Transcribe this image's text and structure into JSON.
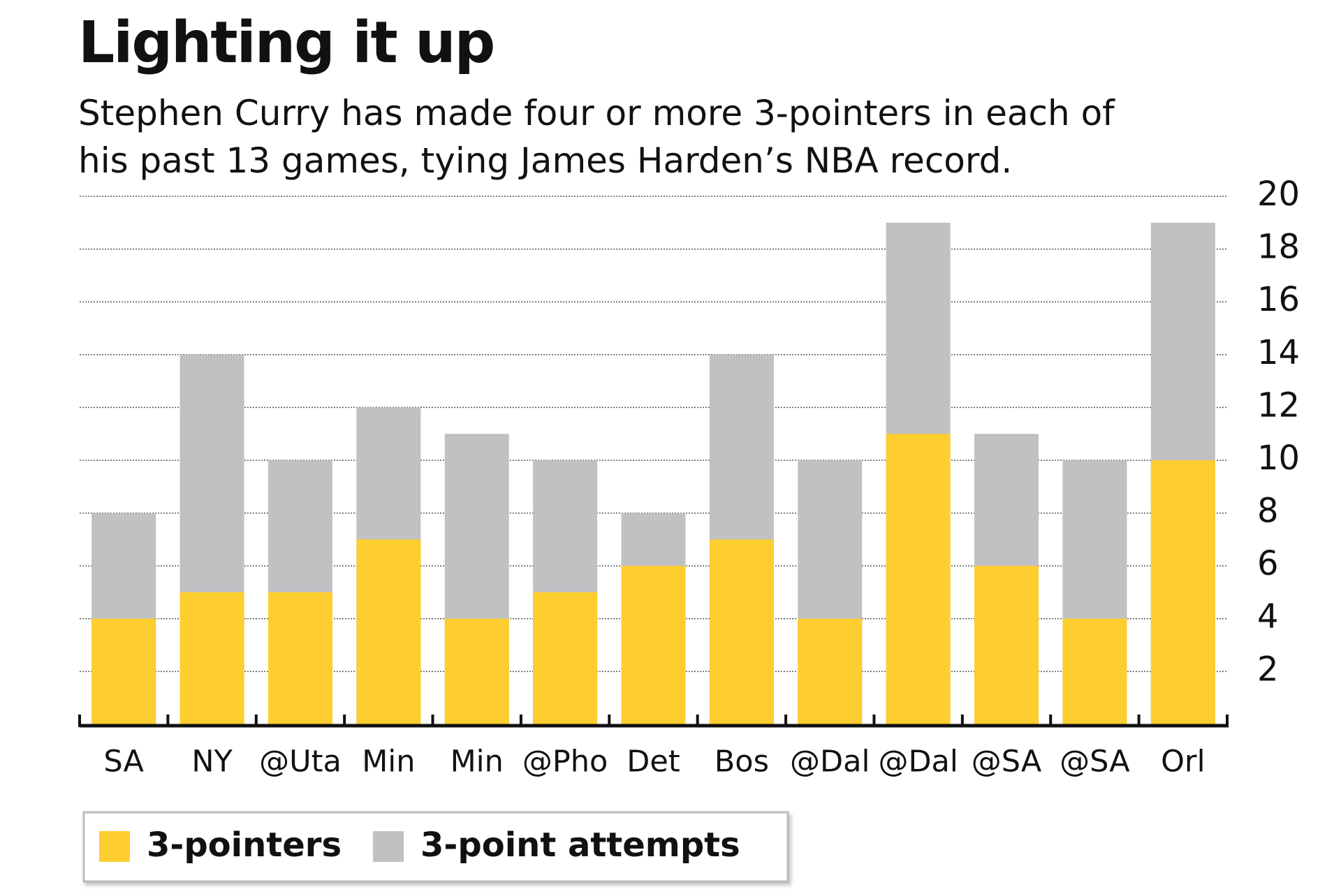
{
  "chart_data": {
    "type": "bar",
    "title": "Lighting it up",
    "subtitle": "Stephen Curry has made four or more 3-pointers in each of his past 13 games, tying James Harden’s NBA record.",
    "categories": [
      "SA",
      "NY",
      "@Uta",
      "Min",
      "Min",
      "@Pho",
      "Det",
      "Bos",
      "@Dal",
      "@Dal",
      "@SA",
      "@SA",
      "Orl"
    ],
    "series": [
      {
        "name": "3-pointers",
        "color": "#fecd2f",
        "values": [
          4,
          5,
          5,
          7,
          4,
          5,
          6,
          7,
          4,
          11,
          6,
          4,
          10
        ]
      },
      {
        "name": "3-point attempts",
        "color": "#c0c1c3",
        "values": [
          8,
          14,
          10,
          12,
          11,
          10,
          8,
          14,
          10,
          19,
          11,
          10,
          19
        ]
      }
    ],
    "ylim": [
      0,
      20
    ],
    "yticks": [
      2,
      4,
      6,
      8,
      10,
      12,
      14,
      16,
      18,
      20
    ],
    "grid": true
  }
}
